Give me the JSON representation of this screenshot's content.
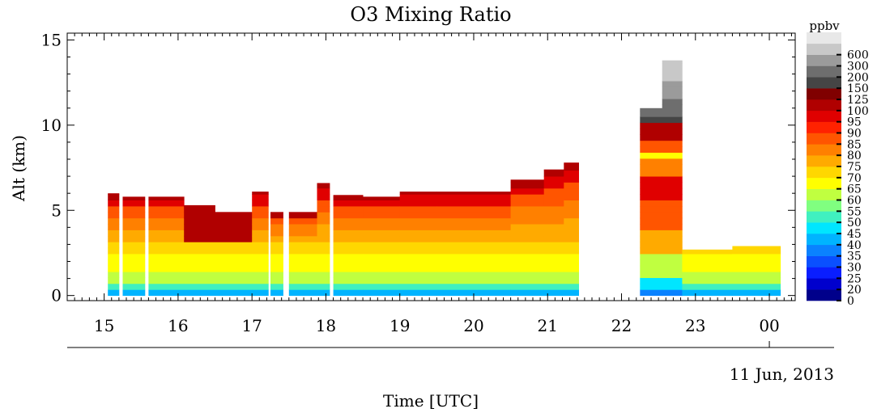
{
  "chart_data": {
    "type": "heatmap",
    "title": "O3 Mixing Ratio",
    "xlabel": "Time [UTC]",
    "ylabel": "Alt (km)",
    "date_label": "11 Jun, 2013",
    "x_ticks": [
      "15",
      "16",
      "17",
      "18",
      "19",
      "20",
      "21",
      "22",
      "23",
      "00"
    ],
    "x_tick_values": [
      15,
      16,
      17,
      18,
      19,
      20,
      21,
      22,
      23,
      24
    ],
    "xlim": [
      14.5,
      24.35
    ],
    "y_ticks": [
      "0",
      "5",
      "10",
      "15"
    ],
    "y_tick_values": [
      0,
      5,
      10,
      15
    ],
    "ylim": [
      -0.3,
      15.4
    ],
    "colorbar": {
      "unit": "ppbv",
      "levels": [
        "0",
        "20",
        "25",
        "30",
        "35",
        "40",
        "45",
        "50",
        "55",
        "60",
        "65",
        "70",
        "75",
        "80",
        "85",
        "90",
        "95",
        "100",
        "125",
        "150",
        "200",
        "300",
        "600"
      ],
      "colors": [
        "#00008b",
        "#0000cd",
        "#0a1eff",
        "#0a50ff",
        "#0a82ff",
        "#00b4ff",
        "#00e6ff",
        "#40f0c0",
        "#80ff80",
        "#c0ff40",
        "#ffff00",
        "#ffd700",
        "#ffaa00",
        "#ff8000",
        "#ff5500",
        "#ff2200",
        "#e00000",
        "#b00000",
        "#800000",
        "#454545",
        "#6e6e6e",
        "#9b9b9b",
        "#c8c8c8",
        "#e8e8e8"
      ]
    },
    "profiles": [
      {
        "t0": 15.05,
        "t1": 15.2,
        "top": 6.0
      },
      {
        "t0": 15.25,
        "t1": 15.55,
        "top": 5.8
      },
      {
        "t0": 15.6,
        "t1": 16.08,
        "top": 5.8
      },
      {
        "t0": 16.08,
        "t1": 16.5,
        "top": 5.3,
        "dense": 3.2
      },
      {
        "t0": 16.5,
        "t1": 17.0,
        "top": 4.9,
        "dense": 3.3
      },
      {
        "t0": 17.0,
        "t1": 17.22,
        "top": 6.1
      },
      {
        "t0": 17.25,
        "t1": 17.42,
        "top": 4.9
      },
      {
        "t0": 17.5,
        "t1": 17.88,
        "top": 4.9
      },
      {
        "t0": 17.88,
        "t1": 18.05,
        "top": 6.6
      },
      {
        "t0": 18.1,
        "t1": 18.5,
        "top": 5.9
      },
      {
        "t0": 18.5,
        "t1": 19.0,
        "top": 5.8
      },
      {
        "t0": 19.0,
        "t1": 19.5,
        "top": 6.1
      },
      {
        "t0": 19.5,
        "t1": 20.0,
        "top": 6.1
      },
      {
        "t0": 20.0,
        "t1": 20.5,
        "top": 6.1
      },
      {
        "t0": 20.5,
        "t1": 20.95,
        "top": 6.8
      },
      {
        "t0": 20.95,
        "t1": 21.22,
        "top": 7.4
      },
      {
        "t0": 21.22,
        "t1": 21.42,
        "top": 7.8
      },
      {
        "t0": 22.25,
        "t1": 22.55,
        "top": 11.0,
        "strat": true
      },
      {
        "t0": 22.55,
        "t1": 22.82,
        "top": 13.8,
        "strat": true
      },
      {
        "t0": 22.82,
        "t1": 23.5,
        "top": 2.7
      },
      {
        "t0": 23.5,
        "t1": 24.15,
        "top": 2.9
      }
    ]
  }
}
